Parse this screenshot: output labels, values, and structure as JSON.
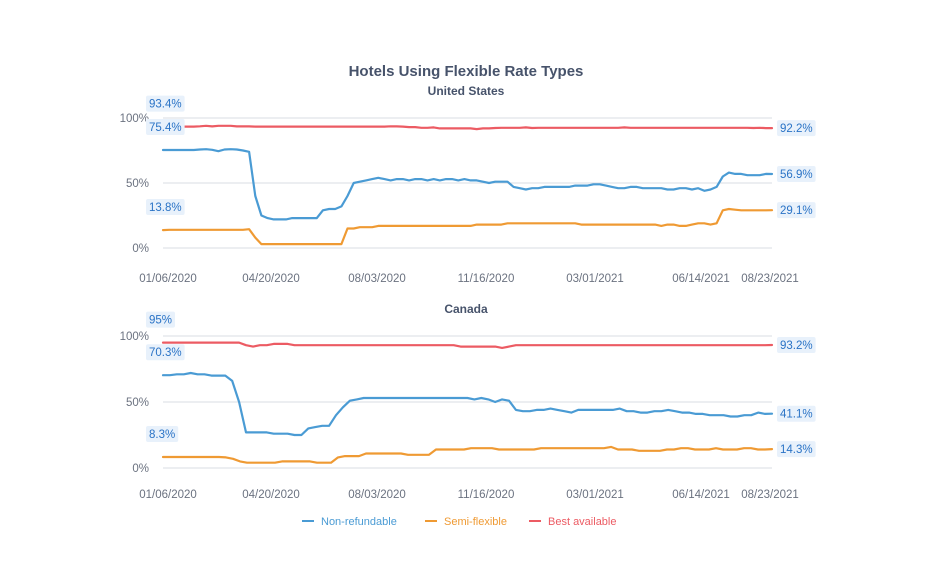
{
  "chart_data": {
    "type": "line",
    "title": "Hotels Using Flexible Rate Types",
    "legend": {
      "placement": "bottom"
    },
    "series_styles": [
      {
        "name": "Non-refundable",
        "color": "#4a9bd4"
      },
      {
        "name": "Semi-flexible",
        "color": "#ef9a33"
      },
      {
        "name": "Best available",
        "color": "#ec5b63"
      }
    ],
    "panels": [
      {
        "subtitle": "United States",
        "ylim": [
          0,
          100
        ],
        "yticks": [
          "0%",
          "50%",
          "100%"
        ],
        "xticks": [
          "01/06/2020",
          "04/20/2020",
          "08/03/2020",
          "11/16/2020",
          "03/01/2021",
          "06/14/2021",
          "08/23/2021"
        ],
        "series": [
          {
            "name": "Non-refundable",
            "start_label": "75.4%",
            "end_label": "56.9%",
            "values": [
              75.4,
              75.4,
              75.4,
              75.4,
              75.4,
              75.4,
              75.8,
              76,
              75.5,
              74.5,
              75.8,
              76,
              75.8,
              75,
              74,
              40,
              25,
              23,
              22,
              22,
              22,
              23,
              23,
              23,
              23,
              23,
              29,
              30,
              30,
              32,
              40,
              50,
              51,
              52,
              53,
              54,
              53,
              52,
              53,
              53,
              52,
              53,
              53,
              52,
              53,
              52,
              53,
              53,
              52,
              53,
              52,
              52,
              51,
              50,
              51,
              51,
              51,
              47,
              46,
              45,
              46,
              46,
              47,
              47,
              47,
              47,
              47,
              48,
              48,
              48,
              49,
              49,
              48,
              47,
              46,
              46,
              47,
              47,
              46,
              46,
              46,
              46,
              45,
              45,
              46,
              46,
              45,
              46,
              44,
              45,
              47,
              55,
              58,
              57,
              57,
              56,
              56,
              56,
              57,
              56.9
            ]
          },
          {
            "name": "Semi-flexible",
            "start_label": "13.8%",
            "end_label": "29.1%",
            "values": [
              13.8,
              14,
              14,
              14,
              14,
              14,
              14,
              14,
              14,
              14,
              14,
              14,
              14,
              14,
              14.5,
              8,
              3,
              3,
              3,
              3,
              3,
              3,
              3,
              3,
              3,
              3,
              3,
              3,
              3,
              3,
              15,
              15,
              16,
              16,
              16,
              17,
              17,
              17,
              17,
              17,
              17,
              17,
              17,
              17,
              17,
              17,
              17,
              17,
              17,
              17,
              17,
              18,
              18,
              18,
              18,
              18,
              19,
              19,
              19,
              19,
              19,
              19,
              19,
              19,
              19,
              19,
              19,
              19,
              18,
              18,
              18,
              18,
              18,
              18,
              18,
              18,
              18,
              18,
              18,
              18,
              18,
              17,
              18,
              18,
              17,
              17,
              18,
              19,
              19,
              18,
              19,
              29,
              30,
              29.5,
              29,
              29,
              29,
              29,
              29,
              29.1
            ]
          },
          {
            "name": "Best available",
            "start_label": "93.4%",
            "end_label": "92.2%",
            "values": [
              93.4,
              93.4,
              93.4,
              93.4,
              93.4,
              93.4,
              93.6,
              94,
              93.5,
              94,
              94,
              94,
              93.5,
              93.5,
              93.5,
              93.4,
              93.4,
              93.4,
              93.4,
              93.4,
              93.4,
              93.4,
              93.4,
              93.4,
              93.4,
              93.4,
              93.4,
              93.4,
              93.4,
              93.4,
              93.4,
              93.4,
              93.4,
              93.4,
              93.4,
              93.4,
              93.4,
              93.6,
              93.5,
              93.4,
              93,
              93,
              92.5,
              92.5,
              92.8,
              92,
              92,
              92,
              92,
              92,
              92,
              91.5,
              92,
              92,
              92.3,
              92.5,
              92.5,
              92.5,
              92.5,
              92.8,
              92.3,
              92.5,
              92.5,
              92.5,
              92.5,
              92.5,
              92.5,
              92.5,
              92.5,
              92.5,
              92.5,
              92.5,
              92.5,
              92.5,
              92.5,
              92.8,
              92.5,
              92.5,
              92.5,
              92.5,
              92.5,
              92.5,
              92.5,
              92.5,
              92.5,
              92.5,
              92.5,
              92.5,
              92.5,
              92.5,
              92.5,
              92.5,
              92.5,
              92.5,
              92.5,
              92.5,
              92.3,
              92.5,
              92.2,
              92.2
            ]
          }
        ]
      },
      {
        "subtitle": "Canada",
        "ylim": [
          0,
          100
        ],
        "yticks": [
          "0%",
          "50%",
          "100%"
        ],
        "xticks": [
          "01/06/2020",
          "04/20/2020",
          "08/03/2020",
          "11/16/2020",
          "03/01/2021",
          "06/14/2021",
          "08/23/2021"
        ],
        "series": [
          {
            "name": "Non-refundable",
            "start_label": "70.3%",
            "end_label": "41.1%",
            "values": [
              70.3,
              70.3,
              71,
              71,
              72,
              71,
              71,
              70,
              70,
              70,
              66,
              50,
              27,
              27,
              27,
              27,
              26,
              26,
              26,
              25,
              25,
              30,
              31,
              32,
              32,
              40,
              46,
              51,
              52,
              53,
              53,
              53,
              53,
              53,
              53,
              53,
              53,
              53,
              53,
              53,
              53,
              53,
              53,
              53,
              53,
              52,
              53,
              52,
              50,
              52,
              51,
              44,
              43,
              43,
              44,
              44,
              45,
              44,
              43,
              42,
              44,
              44,
              44,
              44,
              44,
              44,
              45,
              43,
              43,
              42,
              42,
              43,
              43,
              44,
              43,
              42,
              42,
              41,
              41,
              40,
              40,
              40,
              39,
              39,
              40,
              40,
              42,
              41,
              41.1
            ]
          },
          {
            "name": "Semi-flexible",
            "start_label": "8.3%",
            "end_label": "14.3%",
            "values": [
              8.3,
              8.3,
              8.3,
              8.3,
              8.3,
              8.3,
              8.3,
              8.3,
              8.3,
              8,
              7,
              5,
              4,
              4,
              4,
              4,
              4,
              5,
              5,
              5,
              5,
              5,
              4,
              4,
              4,
              8,
              9,
              9,
              9,
              11,
              11,
              11,
              11,
              11,
              11,
              10,
              10,
              10,
              10,
              14,
              14,
              14,
              14,
              14,
              15,
              15,
              15,
              15,
              14,
              14,
              14,
              14,
              14,
              14,
              15,
              15,
              15,
              15,
              15,
              15,
              15,
              15,
              15,
              15,
              16,
              14,
              14,
              14,
              13,
              13,
              13,
              13,
              14,
              14,
              15,
              15,
              14,
              14,
              14,
              15,
              14,
              14,
              14,
              15,
              15,
              14,
              14,
              14.3
            ]
          },
          {
            "name": "Best available",
            "start_label": "95%",
            "end_label": "93.2%",
            "values": [
              95,
              95,
              95,
              95,
              95,
              95,
              95,
              95,
              95,
              95,
              95,
              95,
              93,
              92,
              93,
              93,
              94,
              94,
              94,
              93,
              93,
              93,
              93,
              93,
              93,
              93,
              93,
              93,
              93,
              93,
              93,
              93,
              93,
              93,
              93,
              93,
              93,
              93,
              93,
              93,
              93,
              93,
              93,
              92,
              92,
              92,
              92,
              92,
              92,
              91,
              92,
              93,
              93,
              93,
              93,
              93,
              93,
              93,
              93,
              93,
              93,
              93,
              93,
              93,
              93,
              93,
              93,
              93,
              93,
              93,
              93,
              93,
              93,
              93,
              93,
              93,
              93,
              93,
              93,
              93,
              93,
              93,
              93,
              93,
              93,
              93,
              93,
              93,
              93.2
            ]
          }
        ]
      }
    ]
  }
}
